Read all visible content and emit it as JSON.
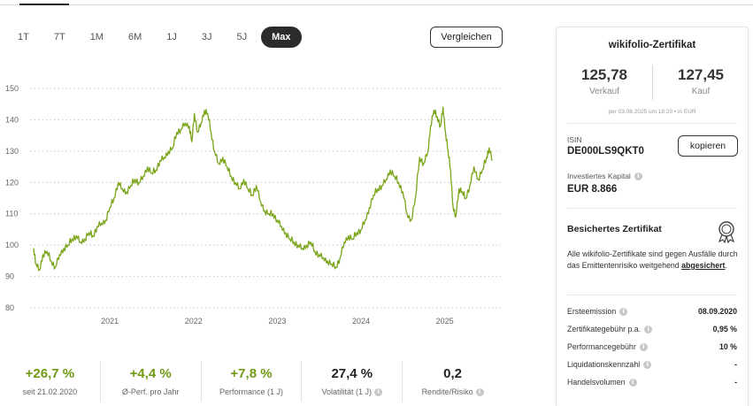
{
  "ranges": [
    {
      "label": "1T",
      "active": false
    },
    {
      "label": "7T",
      "active": false
    },
    {
      "label": "1M",
      "active": false
    },
    {
      "label": "6M",
      "active": false
    },
    {
      "label": "1J",
      "active": false
    },
    {
      "label": "3J",
      "active": false
    },
    {
      "label": "5J",
      "active": false
    },
    {
      "label": "Max",
      "active": true
    }
  ],
  "compare_label": "Vergleichen",
  "chart_data": {
    "type": "line",
    "x_tick_labels": [
      "2021",
      "2022",
      "2023",
      "2024",
      "2025"
    ],
    "y_ticks": [
      80,
      90,
      100,
      110,
      120,
      130,
      140,
      150
    ],
    "ylim": [
      80,
      150
    ],
    "xlim": [
      2020.14,
      2025.72
    ],
    "grid": true,
    "line_color": "#7aa51a",
    "series": [
      {
        "x": [
          2020.14,
          2020.17,
          2020.21,
          2020.25,
          2020.3,
          2020.35,
          2020.4,
          2020.45,
          2020.5,
          2020.55,
          2020.6,
          2020.65,
          2020.7,
          2020.75,
          2020.8,
          2020.85,
          2020.9,
          2020.95,
          2021.0,
          2021.05,
          2021.1,
          2021.15,
          2021.2,
          2021.25,
          2021.3,
          2021.35,
          2021.4,
          2021.45,
          2021.5,
          2021.55,
          2021.6,
          2021.65,
          2021.7,
          2021.75,
          2021.8,
          2021.85,
          2021.9,
          2021.95,
          2022.0,
          2022.03,
          2022.06,
          2022.1,
          2022.14,
          2022.18,
          2022.22,
          2022.26,
          2022.3,
          2022.35,
          2022.4,
          2022.45,
          2022.5,
          2022.55,
          2022.6,
          2022.65,
          2022.7,
          2022.75,
          2022.8,
          2022.85,
          2022.9,
          2022.95,
          2023.0,
          2023.05,
          2023.1,
          2023.15,
          2023.2,
          2023.25,
          2023.3,
          2023.35,
          2023.4,
          2023.45,
          2023.5,
          2023.55,
          2023.6,
          2023.65,
          2023.7,
          2023.75,
          2023.8,
          2023.85,
          2023.9,
          2023.95,
          2024.0,
          2024.05,
          2024.1,
          2024.15,
          2024.2,
          2024.25,
          2024.3,
          2024.35,
          2024.4,
          2024.45,
          2024.5,
          2024.55,
          2024.6,
          2024.65,
          2024.7,
          2024.75,
          2024.8,
          2024.85,
          2024.88,
          2024.92,
          2024.96,
          2025.0,
          2025.03,
          2025.06,
          2025.09,
          2025.12,
          2025.15,
          2025.18,
          2025.22,
          2025.26,
          2025.3,
          2025.35,
          2025.4,
          2025.45,
          2025.5,
          2025.55,
          2025.58,
          2025.62
        ],
        "values": [
          99,
          94,
          92,
          97,
          98,
          95,
          93,
          97,
          99,
          100,
          102,
          103,
          101,
          102,
          104,
          103,
          106,
          107,
          108,
          112,
          115,
          120,
          118,
          117,
          119,
          121,
          120,
          122,
          125,
          123,
          124,
          127,
          128,
          130,
          131,
          136,
          137,
          139,
          138,
          133,
          142,
          136,
          139,
          143,
          142,
          136,
          130,
          126,
          128,
          125,
          122,
          120,
          118,
          121,
          118,
          116,
          119,
          114,
          111,
          110,
          110,
          108,
          106,
          104,
          102,
          101,
          100,
          99,
          100,
          101,
          98,
          97,
          96,
          95,
          94,
          93,
          96,
          101,
          103,
          102,
          104,
          105,
          108,
          112,
          116,
          118,
          119,
          121,
          124,
          122,
          120,
          117,
          110,
          108,
          115,
          128,
          126,
          130,
          138,
          143,
          141,
          138,
          144,
          136,
          130,
          124,
          112,
          109,
          118,
          117,
          115,
          119,
          125,
          121,
          124,
          128,
          131,
          127
        ]
      }
    ]
  },
  "stats": [
    {
      "value": "+26,7 %",
      "label": "seit 21.02.2020",
      "info": false,
      "color": "green"
    },
    {
      "value": "+4,4 %",
      "label": "Ø-Perf. pro Jahr",
      "info": false,
      "color": "green"
    },
    {
      "value": "+7,8 %",
      "label": "Performance (1 J)",
      "info": false,
      "color": "green"
    },
    {
      "value": "27,4 %",
      "label": "Volatilität (1 J)",
      "info": true,
      "color": "dark"
    },
    {
      "value": "0,2",
      "label": "Rendite/Risiko",
      "info": true,
      "color": "dark"
    }
  ],
  "panel": {
    "title": "wikifolio-Zertifikat",
    "sell_price": "125,78",
    "sell_label": "Verkauf",
    "buy_price": "127,45",
    "buy_label": "Kauf",
    "price_note": "per 03.08.2025 um 18:20  •  in EUR",
    "isin_label": "ISIN",
    "isin_value": "DE000LS9QKT0",
    "copy_label": "kopieren",
    "capital_label": "Investiertes Kapital",
    "capital_value": "EUR 8.866",
    "secured_title": "Besichertes Zertifikat",
    "secured_text": "Alle wikifolio-Zertifikate sind gegen Ausfälle durch das Emittentenrisiko weitgehend",
    "secured_link": "abgesichert",
    "secured_end": ".",
    "details": [
      {
        "key": "Ersteemission",
        "value": "08.09.2020",
        "info": true
      },
      {
        "key": "Zertifikategebühr p.a.",
        "value": "0,95 %",
        "info": true
      },
      {
        "key": "Performancegebühr",
        "value": "10 %",
        "info": true
      },
      {
        "key": "Liquidationskennzahl",
        "value": "-",
        "info": true
      },
      {
        "key": "Handelsvolumen",
        "value": "-",
        "info": true
      }
    ]
  }
}
